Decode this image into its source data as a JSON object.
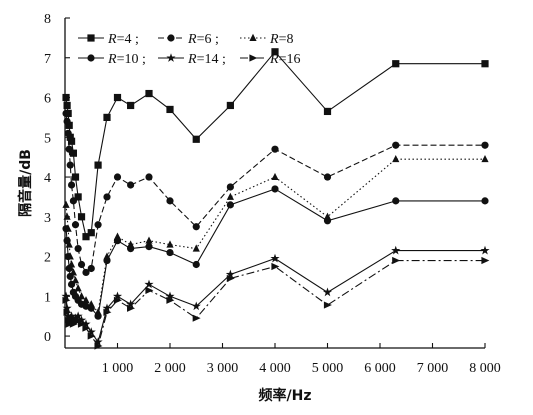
{
  "chart_data": {
    "type": "line",
    "xlabel": "频率/Hz",
    "ylabel": "隔音量/dB",
    "xlim": [
      0,
      8000
    ],
    "ylim": [
      -0.3,
      8
    ],
    "x_ticks": [
      1000,
      2000,
      3000,
      4000,
      5000,
      6000,
      7000,
      8000
    ],
    "x_tick_labels": [
      "1 000",
      "2 000",
      "3 000",
      "4 000",
      "5 000",
      "6 000",
      "7 000",
      "8 000"
    ],
    "y_ticks": [
      0,
      1,
      2,
      3,
      4,
      5,
      6,
      7,
      8
    ],
    "y_tick_labels": [
      "0",
      "1",
      "2",
      "3",
      "4",
      "5",
      "6",
      "7",
      "8"
    ],
    "grid": false,
    "legend_position": "top-left",
    "legend_separators": [
      ";",
      ";",
      "",
      ";",
      ";",
      ""
    ],
    "series": [
      {
        "name": "R=4",
        "label_var": "R",
        "label_val": "=4",
        "marker": "square",
        "dash": "solid",
        "points": [
          [
            20,
            6.0
          ],
          [
            40,
            5.8
          ],
          [
            60,
            5.6
          ],
          [
            80,
            5.3
          ],
          [
            100,
            5.0
          ],
          [
            125,
            4.9
          ],
          [
            160,
            4.6
          ],
          [
            200,
            4.0
          ],
          [
            250,
            3.5
          ],
          [
            315,
            3.0
          ],
          [
            400,
            2.5
          ],
          [
            500,
            2.6
          ],
          [
            630,
            4.3
          ],
          [
            800,
            5.5
          ],
          [
            1000,
            6.0
          ],
          [
            1250,
            5.8
          ],
          [
            1600,
            6.1
          ],
          [
            2000,
            5.7
          ],
          [
            2500,
            4.95
          ],
          [
            3150,
            5.8
          ],
          [
            4000,
            7.15
          ],
          [
            5000,
            5.65
          ],
          [
            6300,
            6.85
          ],
          [
            8000,
            6.85
          ]
        ]
      },
      {
        "name": "R=6",
        "label_var": "R",
        "label_val": "=6",
        "marker": "circle",
        "dash": "dashed",
        "points": [
          [
            20,
            5.6
          ],
          [
            40,
            5.4
          ],
          [
            60,
            5.1
          ],
          [
            80,
            4.7
          ],
          [
            100,
            4.3
          ],
          [
            125,
            3.8
          ],
          [
            160,
            3.4
          ],
          [
            200,
            2.8
          ],
          [
            250,
            2.2
          ],
          [
            315,
            1.8
          ],
          [
            400,
            1.6
          ],
          [
            500,
            1.7
          ],
          [
            630,
            2.8
          ],
          [
            800,
            3.5
          ],
          [
            1000,
            4.0
          ],
          [
            1250,
            3.8
          ],
          [
            1600,
            4.0
          ],
          [
            2000,
            3.4
          ],
          [
            2500,
            2.75
          ],
          [
            3150,
            3.75
          ],
          [
            4000,
            4.7
          ],
          [
            5000,
            4.0
          ],
          [
            6300,
            4.8
          ],
          [
            8000,
            4.8
          ]
        ]
      },
      {
        "name": "R=8",
        "label_var": "R",
        "label_val": "=8",
        "marker": "triangle",
        "dash": "dotted",
        "points": [
          [
            20,
            3.3
          ],
          [
            40,
            3.0
          ],
          [
            60,
            2.7
          ],
          [
            80,
            2.3
          ],
          [
            100,
            2.0
          ],
          [
            125,
            1.8
          ],
          [
            160,
            1.6
          ],
          [
            200,
            1.4
          ],
          [
            250,
            1.2
          ],
          [
            315,
            1.0
          ],
          [
            400,
            0.9
          ],
          [
            500,
            0.8
          ],
          [
            630,
            0.6
          ],
          [
            800,
            2.0
          ],
          [
            1000,
            2.5
          ],
          [
            1250,
            2.3
          ],
          [
            1600,
            2.4
          ],
          [
            2000,
            2.3
          ],
          [
            2500,
            2.2
          ],
          [
            3150,
            3.5
          ],
          [
            4000,
            4.0
          ],
          [
            5000,
            3.0
          ],
          [
            6300,
            4.45
          ],
          [
            8000,
            4.45
          ]
        ]
      },
      {
        "name": "R=10",
        "label_var": "R",
        "label_val": "=10",
        "marker": "circle",
        "dash": "solid",
        "points": [
          [
            20,
            2.7
          ],
          [
            40,
            2.4
          ],
          [
            60,
            2.0
          ],
          [
            80,
            1.7
          ],
          [
            100,
            1.5
          ],
          [
            125,
            1.3
          ],
          [
            160,
            1.1
          ],
          [
            200,
            1.0
          ],
          [
            250,
            0.9
          ],
          [
            315,
            0.8
          ],
          [
            400,
            0.75
          ],
          [
            500,
            0.7
          ],
          [
            630,
            0.5
          ],
          [
            800,
            1.9
          ],
          [
            1000,
            2.4
          ],
          [
            1250,
            2.2
          ],
          [
            1600,
            2.25
          ],
          [
            2000,
            2.1
          ],
          [
            2500,
            1.8
          ],
          [
            3150,
            3.3
          ],
          [
            4000,
            3.7
          ],
          [
            5000,
            2.9
          ],
          [
            6300,
            3.4
          ],
          [
            8000,
            3.4
          ]
        ]
      },
      {
        "name": "R=14",
        "label_var": "R",
        "label_val": "=14",
        "marker": "star",
        "dash": "solid",
        "points": [
          [
            20,
            1.0
          ],
          [
            40,
            0.7
          ],
          [
            60,
            0.5
          ],
          [
            80,
            0.4
          ],
          [
            100,
            0.45
          ],
          [
            125,
            0.5
          ],
          [
            160,
            0.4
          ],
          [
            200,
            0.45
          ],
          [
            250,
            0.5
          ],
          [
            315,
            0.4
          ],
          [
            400,
            0.3
          ],
          [
            500,
            0.1
          ],
          [
            630,
            -0.15
          ],
          [
            800,
            0.7
          ],
          [
            1000,
            1.0
          ],
          [
            1250,
            0.8
          ],
          [
            1600,
            1.3
          ],
          [
            2000,
            1.0
          ],
          [
            2500,
            0.75
          ],
          [
            3150,
            1.55
          ],
          [
            4000,
            1.95
          ],
          [
            5000,
            1.1
          ],
          [
            6300,
            2.15
          ],
          [
            8000,
            2.15
          ]
        ]
      },
      {
        "name": "R=16",
        "label_var": "R",
        "label_val": "=16",
        "marker": "arrow",
        "dash": "dashdot",
        "points": [
          [
            20,
            0.9
          ],
          [
            40,
            0.6
          ],
          [
            60,
            0.4
          ],
          [
            80,
            0.3
          ],
          [
            100,
            0.35
          ],
          [
            125,
            0.4
          ],
          [
            160,
            0.3
          ],
          [
            200,
            0.35
          ],
          [
            250,
            0.4
          ],
          [
            315,
            0.3
          ],
          [
            400,
            0.2
          ],
          [
            500,
            0.0
          ],
          [
            630,
            -0.25
          ],
          [
            800,
            0.6
          ],
          [
            1000,
            0.9
          ],
          [
            1250,
            0.7
          ],
          [
            1600,
            1.15
          ],
          [
            2000,
            0.9
          ],
          [
            2500,
            0.45
          ],
          [
            3150,
            1.45
          ],
          [
            4000,
            1.75
          ],
          [
            5000,
            0.78
          ],
          [
            6300,
            1.9
          ],
          [
            8000,
            1.9
          ]
        ]
      }
    ]
  }
}
